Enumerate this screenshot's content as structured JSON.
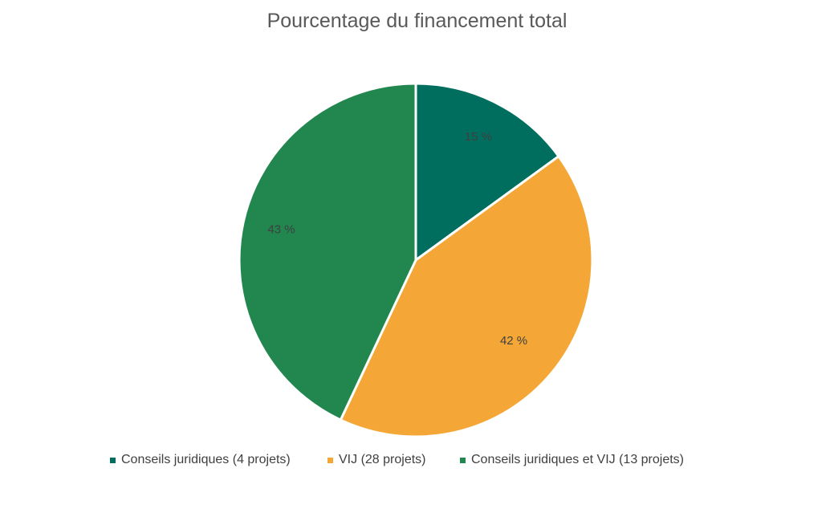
{
  "chart_data": {
    "type": "pie",
    "title": "Pourcentage du financement total",
    "categories": [
      "Conseils juridiques (4 projets)",
      "VIJ (28 projets)",
      "Conseils juridiques et VIJ (13 projets)"
    ],
    "values": [
      15,
      42,
      43
    ],
    "data_labels": [
      "15 %",
      "42 %",
      "43 %"
    ],
    "colors": [
      "#006e5e",
      "#f4a736",
      "#21874f"
    ],
    "start_angle_deg": 0,
    "direction": "clockwise",
    "legend_position": "bottom"
  }
}
